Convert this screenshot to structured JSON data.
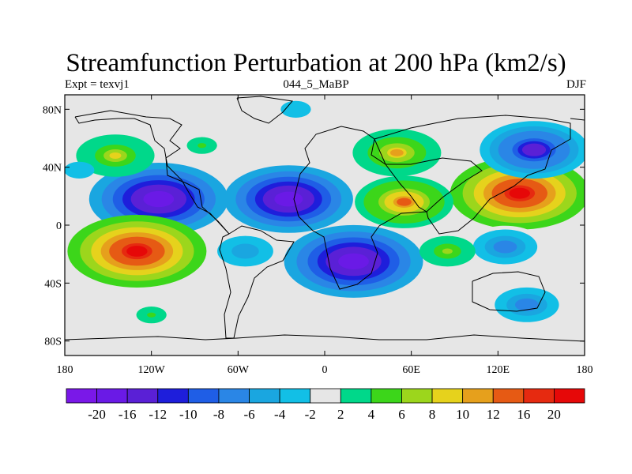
{
  "title": "Streamfunction Perturbation at 200 hPa (km2/s)",
  "subtitle_left": "Expt = texvj1",
  "subtitle_center": "044_5_MaBP",
  "subtitle_right": "DJF",
  "chart_data": {
    "type": "heatmap",
    "projection": "cylindrical-equidistant",
    "variable": "Streamfunction Perturbation",
    "level": "200 hPa",
    "units": "km2/s",
    "xlim": [
      -180,
      180
    ],
    "ylim": [
      -90,
      90
    ],
    "x_ticks": [
      {
        "value": -180,
        "label": "180"
      },
      {
        "value": -120,
        "label": "120W"
      },
      {
        "value": -60,
        "label": "60W"
      },
      {
        "value": 0,
        "label": "0"
      },
      {
        "value": 60,
        "label": "60E"
      },
      {
        "value": 120,
        "label": "120E"
      },
      {
        "value": 180,
        "label": "180"
      }
    ],
    "y_ticks": [
      {
        "value": 80,
        "label": "80N"
      },
      {
        "value": 40,
        "label": "40N"
      },
      {
        "value": 0,
        "label": "0"
      },
      {
        "value": -40,
        "label": "40S"
      },
      {
        "value": -80,
        "label": "80S"
      }
    ],
    "background_color": "#e6e6e6",
    "contour_levels": [
      -20,
      -16,
      -12,
      -10,
      -8,
      -6,
      -4,
      -2,
      2,
      4,
      6,
      8,
      10,
      12,
      16,
      20
    ],
    "colorbar_colors": [
      "#7a18e8",
      "#6a1ae6",
      "#5a20d6",
      "#1e1edb",
      "#1f5ee6",
      "#2a86e6",
      "#1aa6e0",
      "#12bfe6",
      "#e6e6e6",
      "#00d88a",
      "#3cd61a",
      "#9cd61c",
      "#e6d21c",
      "#e6a01c",
      "#e65a14",
      "#e62a10",
      "#e60808"
    ],
    "features": [
      {
        "name": "north-pacific-low",
        "lon": -115,
        "lat": 18,
        "value": -20
      },
      {
        "name": "north-atlantic-low",
        "lon": -25,
        "lat": 18,
        "value": -18
      },
      {
        "name": "south-pacific-high",
        "lon": -130,
        "lat": -18,
        "value": 20
      },
      {
        "name": "africa-south-low",
        "lon": 20,
        "lat": -25,
        "value": -20
      },
      {
        "name": "asia-high",
        "lon": 135,
        "lat": 22,
        "value": 20
      },
      {
        "name": "arabia-high",
        "lon": 55,
        "lat": 16,
        "value": 12
      },
      {
        "name": "europe-high",
        "lon": 50,
        "lat": 50,
        "value": 10
      },
      {
        "name": "siberia-low",
        "lon": 145,
        "lat": 52,
        "value": -14
      },
      {
        "name": "australia-low",
        "lon": 125,
        "lat": -15,
        "value": -8
      },
      {
        "name": "southern-ocean-low",
        "lon": 140,
        "lat": -55,
        "value": -8
      },
      {
        "name": "south-indian-high",
        "lon": 85,
        "lat": -18,
        "value": 6
      },
      {
        "name": "north-pacific-high",
        "lon": -145,
        "lat": 48,
        "value": 8
      },
      {
        "name": "north-pacific-high-2",
        "lon": -85,
        "lat": 55,
        "value": 4
      },
      {
        "name": "arctic-low",
        "lon": -20,
        "lat": 80,
        "value": -4
      },
      {
        "name": "south-atlantic-low",
        "lon": -55,
        "lat": -18,
        "value": -6
      },
      {
        "name": "dateline-low-north",
        "lon": -170,
        "lat": 38,
        "value": -4
      },
      {
        "name": "subantarctic-band",
        "lon": -120,
        "lat": -62,
        "value": 4
      }
    ]
  }
}
